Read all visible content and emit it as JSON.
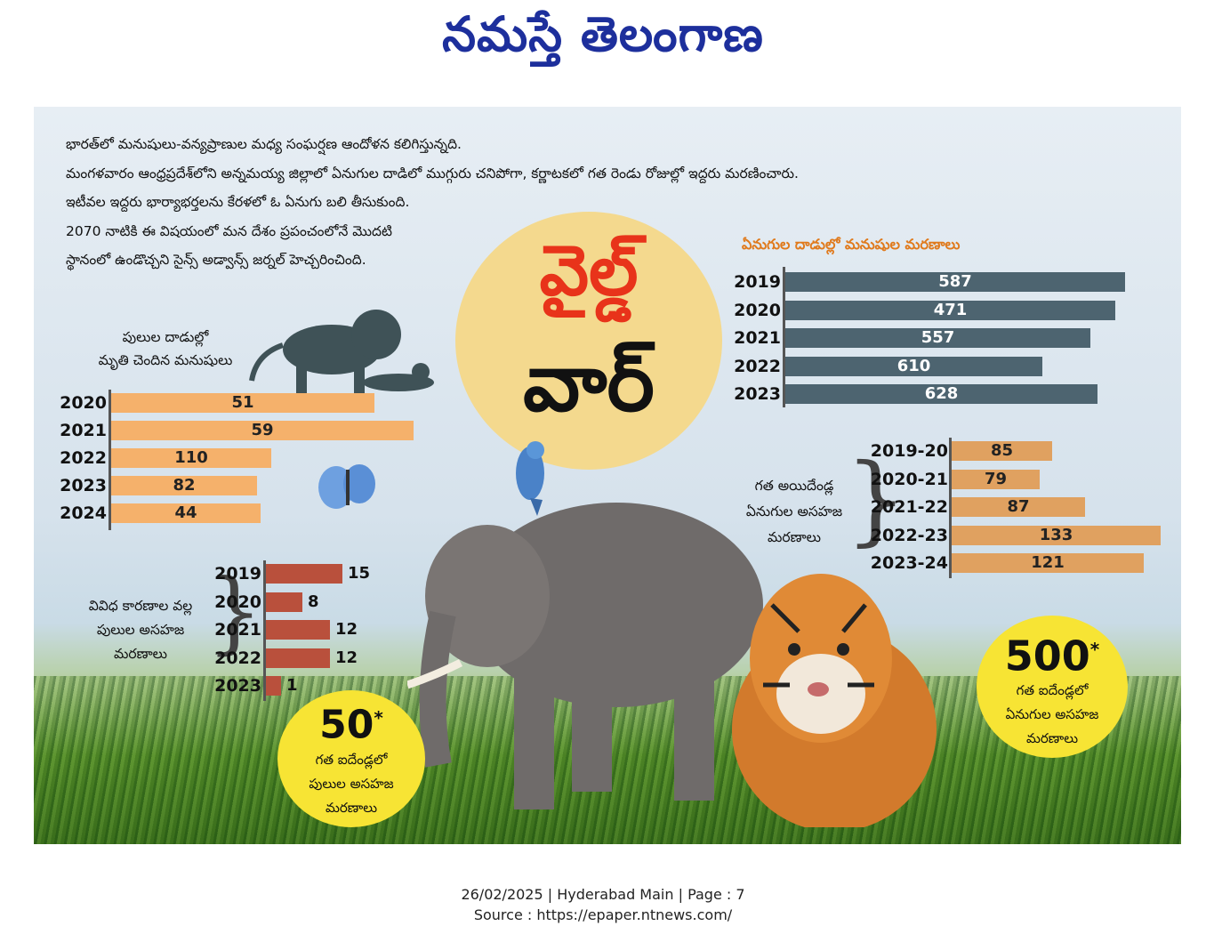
{
  "masthead": {
    "title": "నమస్తే తెలంగాణ"
  },
  "intro": [
    "భారత్‌లో మనుషులు-వన్యప్రాణుల మధ్య సంఘర్షణ ఆందోళన కలిగిస్తున్నది.",
    "మంగళవారం ఆంధ్రప్రదేశ్‌లోని అన్నమయ్య జిల్లాలో ఏనుగుల దాడిలో ముగ్గురు చనిపోగా, కర్ణాటకలో గత రెండు రోజుల్లో ఇద్దరు మరణించారు.",
    "ఇటీవల ఇద్దరు భార్యాభర్తలను కేరళలో ఓ ఏనుగు బలి తీసుకుంది.",
    "2070 నాటికి ఈ విషయంలో మన దేశం ప్రపంచంలోనే మొదటి",
    "స్థానంలో ఉండొచ్చని సైన్స్ అడ్వాన్స్ జర్నల్ హెచ్చరించింది."
  ],
  "headline": {
    "line1": "వైల్డ్",
    "line2": "వార్"
  },
  "tiger_attack": {
    "heading_line1": "పులుల దాడుల్లో",
    "heading_line2": "మృతి చెందిన మనుషులు",
    "color": "#f5b16b",
    "rows": [
      {
        "year": "2020",
        "value": "51",
        "fraction": 0.74
      },
      {
        "year": "2021",
        "value": "59",
        "fraction": 0.85
      },
      {
        "year": "2022",
        "value": "110",
        "fraction": 0.45
      },
      {
        "year": "2023",
        "value": "82",
        "fraction": 0.41
      },
      {
        "year": "2024",
        "value": "44",
        "fraction": 0.42
      }
    ]
  },
  "elephant_attack": {
    "heading": "ఏనుగుల దాడుల్లో మనుషుల మరణాలు",
    "color": "#4d6470",
    "rows": [
      {
        "year": "2019",
        "value": "587",
        "fraction": 0.98
      },
      {
        "year": "2020",
        "value": "471",
        "fraction": 0.95
      },
      {
        "year": "2021",
        "value": "557",
        "fraction": 0.88
      },
      {
        "year": "2022",
        "value": "610",
        "fraction": 0.74
      },
      {
        "year": "2023",
        "value": "628",
        "fraction": 0.9
      }
    ]
  },
  "tiger_unnatural": {
    "label_line1": "వివిధ కారణాల వల్ల",
    "label_line2": "పులుల అసహజ",
    "label_line3": "మరణాలు",
    "color": "#b9503c",
    "rows": [
      {
        "year": "2019",
        "value": "15",
        "fraction": 1.0
      },
      {
        "year": "2020",
        "value": "8",
        "fraction": 0.48
      },
      {
        "year": "2021",
        "value": "12",
        "fraction": 0.84
      },
      {
        "year": "2022",
        "value": "12",
        "fraction": 0.84
      },
      {
        "year": "2023",
        "value": "1",
        "fraction": 0.2
      }
    ]
  },
  "elephant_unnatural": {
    "label_line1": "గత అయిదేండ్ల",
    "label_line2": "ఏనుగుల అసహజ",
    "label_line3": "మరణాలు",
    "color": "#e0a160",
    "rows": [
      {
        "year": "2019-20",
        "value": "85",
        "fraction": 0.48
      },
      {
        "year": "2020-21",
        "value": "79",
        "fraction": 0.42
      },
      {
        "year": "2021-22",
        "value": "87",
        "fraction": 0.64
      },
      {
        "year": "2022-23",
        "value": "133",
        "fraction": 1.0
      },
      {
        "year": "2023-24",
        "value": "121",
        "fraction": 0.92
      }
    ]
  },
  "bubble_tiger": {
    "number": "50",
    "mark": "*",
    "line1": "గత ఐదేండ్లలో",
    "line2": "పులుల అసహజ",
    "line3": "మరణాలు"
  },
  "bubble_elephant": {
    "number": "500",
    "mark": "*",
    "line1": "గత ఐదేండ్లలో",
    "line2": "ఏనుగుల అసహజ",
    "line3": "మరణాలు"
  },
  "footer": {
    "line1": "26/02/2025 | Hyderabad Main | Page : 7",
    "line2": "Source : https://epaper.ntnews.com/"
  }
}
